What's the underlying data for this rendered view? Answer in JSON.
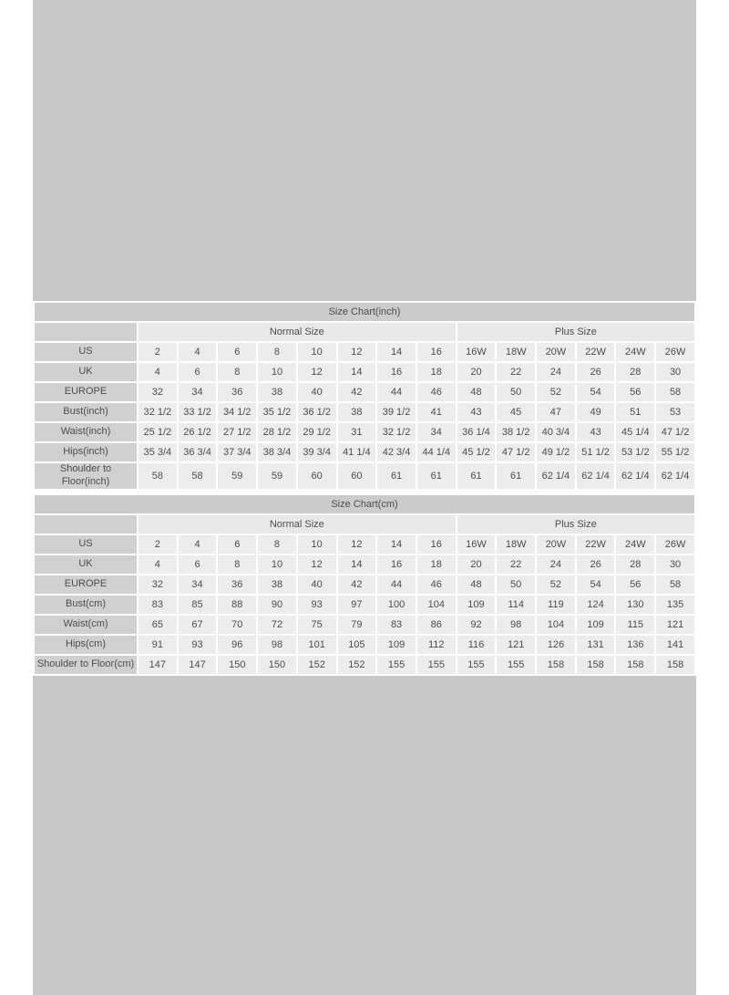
{
  "colors": {
    "margin-bg": "#ffffff",
    "stage-bg": "#c7c7c7",
    "grid-color": "#ffffff",
    "title-bg": "#cbcbcb",
    "label-bg": "#d0d0d0",
    "group-bg": "#e8e8e8",
    "cell-bg": "#ececec",
    "text-color": "#4c4c4c"
  },
  "tables": [
    {
      "title": "Size Chart(inch)",
      "group_headers": [
        {
          "label": "Normal Size",
          "span": 8
        },
        {
          "label": "Plus Size",
          "span": 6
        }
      ],
      "rows": [
        {
          "label": "US",
          "values": [
            "2",
            "4",
            "6",
            "8",
            "10",
            "12",
            "14",
            "16",
            "16W",
            "18W",
            "20W",
            "22W",
            "24W",
            "26W"
          ]
        },
        {
          "label": "UK",
          "values": [
            "4",
            "6",
            "8",
            "10",
            "12",
            "14",
            "16",
            "18",
            "20",
            "22",
            "24",
            "26",
            "28",
            "30"
          ]
        },
        {
          "label": "EUROPE",
          "values": [
            "32",
            "34",
            "36",
            "38",
            "40",
            "42",
            "44",
            "46",
            "48",
            "50",
            "52",
            "54",
            "56",
            "58"
          ]
        },
        {
          "label": "Bust(inch)",
          "values": [
            "32 1/2",
            "33 1/2",
            "34 1/2",
            "35 1/2",
            "36 1/2",
            "38",
            "39 1/2",
            "41",
            "43",
            "45",
            "47",
            "49",
            "51",
            "53"
          ]
        },
        {
          "label": "Waist(inch)",
          "values": [
            "25 1/2",
            "26 1/2",
            "27 1/2",
            "28 1/2",
            "29 1/2",
            "31",
            "32 1/2",
            "34",
            "36 1/4",
            "38 1/2",
            "40 3/4",
            "43",
            "45 1/4",
            "47 1/2"
          ]
        },
        {
          "label": "Hips(inch)",
          "values": [
            "35 3/4",
            "36 3/4",
            "37 3/4",
            "38 3/4",
            "39 3/4",
            "41 1/4",
            "42 3/4",
            "44 1/4",
            "45 1/2",
            "47 1/2",
            "49 1/2",
            "51 1/2",
            "53 1/2",
            "55 1/2"
          ]
        },
        {
          "label": "Shoulder to\nFloor(inch)",
          "values": [
            "58",
            "58",
            "59",
            "59",
            "60",
            "60",
            "61",
            "61",
            "61",
            "61",
            "62 1/4",
            "62 1/4",
            "62 1/4",
            "62 1/4"
          ]
        }
      ]
    },
    {
      "title": "Size Chart(cm)",
      "group_headers": [
        {
          "label": "Normal Size",
          "span": 8
        },
        {
          "label": "Plus Size",
          "span": 6
        }
      ],
      "rows": [
        {
          "label": "US",
          "values": [
            "2",
            "4",
            "6",
            "8",
            "10",
            "12",
            "14",
            "16",
            "16W",
            "18W",
            "20W",
            "22W",
            "24W",
            "26W"
          ]
        },
        {
          "label": "UK",
          "values": [
            "4",
            "6",
            "8",
            "10",
            "12",
            "14",
            "16",
            "18",
            "20",
            "22",
            "24",
            "26",
            "28",
            "30"
          ]
        },
        {
          "label": "EUROPE",
          "values": [
            "32",
            "34",
            "36",
            "38",
            "40",
            "42",
            "44",
            "46",
            "48",
            "50",
            "52",
            "54",
            "56",
            "58"
          ]
        },
        {
          "label": "Bust(cm)",
          "values": [
            "83",
            "85",
            "88",
            "90",
            "93",
            "97",
            "100",
            "104",
            "109",
            "114",
            "119",
            "124",
            "130",
            "135"
          ]
        },
        {
          "label": "Waist(cm)",
          "values": [
            "65",
            "67",
            "70",
            "72",
            "75",
            "79",
            "83",
            "86",
            "92",
            "98",
            "104",
            "109",
            "115",
            "121"
          ]
        },
        {
          "label": "Hips(cm)",
          "values": [
            "91",
            "93",
            "96",
            "98",
            "101",
            "105",
            "109",
            "112",
            "116",
            "121",
            "126",
            "131",
            "136",
            "141"
          ]
        },
        {
          "label": "Shoulder to Floor(cm)",
          "values": [
            "147",
            "147",
            "150",
            "150",
            "152",
            "152",
            "155",
            "155",
            "155",
            "155",
            "158",
            "158",
            "158",
            "158"
          ]
        }
      ]
    }
  ]
}
